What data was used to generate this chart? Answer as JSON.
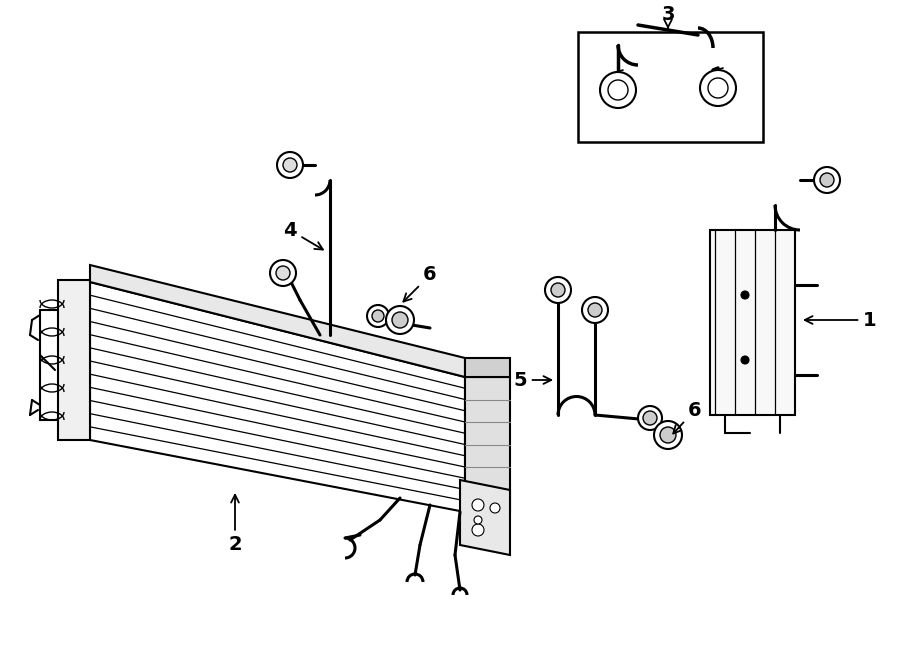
{
  "bg_color": "#ffffff",
  "line_color": "#000000",
  "fig_width": 9.0,
  "fig_height": 6.61,
  "dpi": 100,
  "lw_main": 1.5,
  "lw_pipe": 2.2,
  "lw_thin": 0.8,
  "label_fontsize": 14
}
